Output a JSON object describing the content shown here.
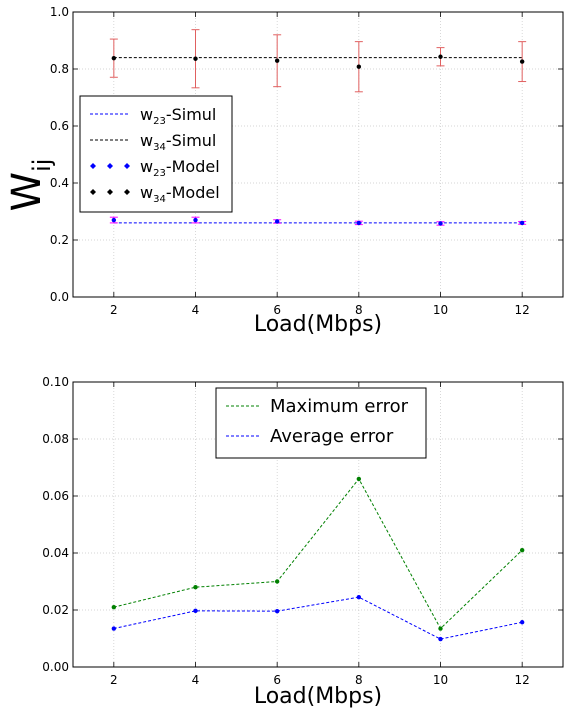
{
  "chart_data": [
    {
      "type": "line",
      "title": "",
      "xlabel": "Load(Mbps)",
      "ylabel": "W",
      "ylabel_sub": "ij",
      "x": [
        2,
        4,
        6,
        8,
        10,
        12
      ],
      "xticks": [
        "2",
        "4",
        "6",
        "8",
        "10",
        "12"
      ],
      "xlim": [
        1,
        13
      ],
      "ylim": [
        0,
        1
      ],
      "yticks": [
        "0.0",
        "0.2",
        "0.4",
        "0.6",
        "0.8",
        "1.0"
      ],
      "grid": true,
      "legend_position": "center-left",
      "series": [
        {
          "name": "w23-Simul",
          "legend_main": "w",
          "legend_sub": "23",
          "legend_rest": "-Simul",
          "color": "#0000ff",
          "style": "dashed-line",
          "values": [
            0.26,
            0.26,
            0.26,
            0.26,
            0.26,
            0.26
          ]
        },
        {
          "name": "w34-Simul",
          "legend_main": "w",
          "legend_sub": "34",
          "legend_rest": "-Simul",
          "color": "#000000",
          "style": "dashed-line",
          "values": [
            0.84,
            0.84,
            0.84,
            0.84,
            0.84,
            0.84
          ]
        },
        {
          "name": "w23-Model",
          "legend_main": "w",
          "legend_sub": "23",
          "legend_rest": "-Model",
          "color": "#0000ff",
          "style": "markers",
          "values": [
            0.27,
            0.27,
            0.265,
            0.26,
            0.258,
            0.26
          ],
          "error": [
            0.01,
            0.01,
            0.006,
            0.006,
            0.006,
            0.005
          ],
          "error_color": "#ff00ff"
        },
        {
          "name": "w34-Model",
          "legend_main": "w",
          "legend_sub": "34",
          "legend_rest": "-Model",
          "color": "#000000",
          "style": "markers",
          "values": [
            0.838,
            0.836,
            0.829,
            0.808,
            0.843,
            0.826
          ],
          "error": [
            0.067,
            0.102,
            0.091,
            0.088,
            0.032,
            0.07
          ],
          "error_color": "#e06060"
        }
      ]
    },
    {
      "type": "line",
      "title": "",
      "xlabel": "Load(Mbps)",
      "ylabel": "",
      "x": [
        2,
        4,
        6,
        8,
        10,
        12
      ],
      "xticks": [
        "2",
        "4",
        "6",
        "8",
        "10",
        "12"
      ],
      "xlim": [
        1,
        13
      ],
      "ylim": [
        0,
        0.1
      ],
      "yticks": [
        "0.00",
        "0.02",
        "0.04",
        "0.06",
        "0.08",
        "0.10"
      ],
      "grid": true,
      "legend_position": "top-center",
      "series": [
        {
          "name": "Maximum error",
          "color": "#008000",
          "values": [
            0.021,
            0.028,
            0.03,
            0.066,
            0.0135,
            0.041
          ]
        },
        {
          "name": "Average error",
          "color": "#0000ff",
          "values": [
            0.0135,
            0.0197,
            0.0196,
            0.0245,
            0.0098,
            0.0157
          ]
        }
      ]
    }
  ]
}
